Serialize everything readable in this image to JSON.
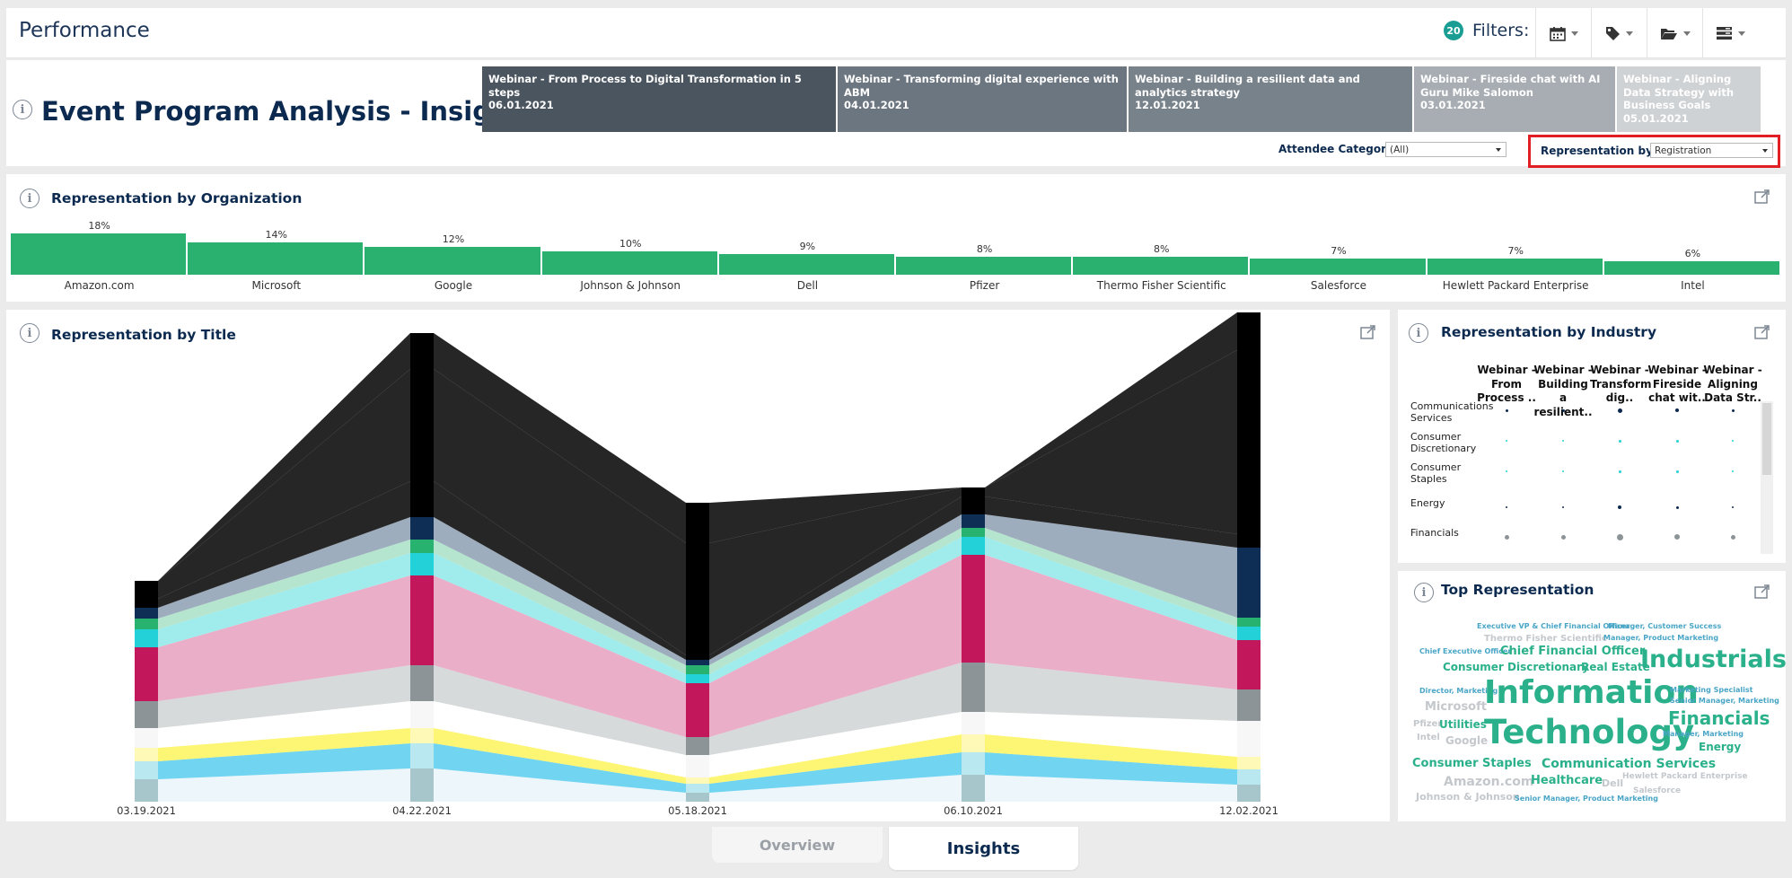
{
  "app": {
    "title": "Performance"
  },
  "filters": {
    "count": "20",
    "label": "Filters:",
    "buttons": [
      "calendar-icon",
      "tag-icon",
      "folder-icon",
      "list-icon"
    ]
  },
  "page": {
    "title": "Event Program Analysis - Insights"
  },
  "webinars": [
    {
      "title": "Webinar - From Process to Digital Transformation in 5 steps",
      "date": "06.01.2021",
      "color": "#4a5560"
    },
    {
      "title": "Webinar - Transforming digital experience with ABM",
      "date": "04.01.2021",
      "color": "#6c7680"
    },
    {
      "title": "Webinar - Building a resilient data and analytics strategy",
      "date": "12.01.2021",
      "color": "#78828b"
    },
    {
      "title": "Webinar - Fireside chat with AI Guru Mike Salomon",
      "date": "03.01.2021",
      "color": "#a7adb3"
    },
    {
      "title": "Webinar - Aligning Data Strategy with Business Goals",
      "date": "05.01.2021",
      "color": "#cfd2d5"
    }
  ],
  "controls": {
    "attendee_label": "Attendee Category:",
    "attendee_value": "(All)",
    "rep_label": "Representation by:",
    "rep_value": "Registration"
  },
  "organization": {
    "title": "Representation by Organization",
    "items": [
      {
        "name": "Amazon.com",
        "pct": "18%",
        "value": 18
      },
      {
        "name": "Microsoft",
        "pct": "14%",
        "value": 14
      },
      {
        "name": "Google",
        "pct": "12%",
        "value": 12
      },
      {
        "name": "Johnson & Johnson",
        "pct": "10%",
        "value": 10
      },
      {
        "name": "Dell",
        "pct": "9%",
        "value": 9
      },
      {
        "name": "Pfizer",
        "pct": "8%",
        "value": 8
      },
      {
        "name": "Thermo Fisher Scientific",
        "pct": "8%",
        "value": 8
      },
      {
        "name": "Salesforce",
        "pct": "7%",
        "value": 7
      },
      {
        "name": "Hewlett Packard Enterprise",
        "pct": "7%",
        "value": 7
      },
      {
        "name": "Intel",
        "pct": "6%",
        "value": 6
      }
    ]
  },
  "title_chart": {
    "title": "Representation by Title",
    "colors": [
      "#a7c6cc",
      "#eaf4f9",
      "#b9e8f0",
      "#58cdee",
      "#fff9b8",
      "#fdf35c",
      "#f7f7f7",
      "#ffffff",
      "#8c9497",
      "#cfd3d4",
      "#c2185b",
      "#e6a0bf",
      "#23d2d8",
      "#8fe9ea",
      "#27b26f",
      "#a8e0c5",
      "#0e2e55",
      "#8d9fb2"
    ]
  },
  "chart_data": {
    "type": "area",
    "x": [
      "03.19.2021",
      "04.22.2021",
      "05.18.2021",
      "06.10.2021",
      "12.02.2021"
    ],
    "series": [
      {
        "values": [
          25,
          37,
          10,
          30,
          19
        ]
      },
      {
        "values": [
          20,
          28,
          10,
          25,
          17
        ]
      },
      {
        "values": [
          15,
          17,
          7,
          20,
          14
        ]
      },
      {
        "values": [
          22,
          30,
          25,
          25,
          40
        ]
      },
      {
        "values": [
          30,
          40,
          20,
          55,
          35
        ]
      },
      {
        "values": [
          60,
          100,
          60,
          120,
          55
        ]
      },
      {
        "values": [
          20,
          25,
          10,
          20,
          15
        ]
      },
      {
        "values": [
          12,
          15,
          10,
          10,
          10
        ]
      },
      {
        "values": [
          12,
          25,
          6,
          15,
          78
        ]
      },
      {
        "values": [
          10,
          40,
          5,
          20,
          15
        ]
      },
      {
        "values": [
          20,
          125,
          125,
          10,
          205
        ]
      },
      {
        "values": [
          0,
          40,
          45,
          0,
          42
        ]
      }
    ]
  },
  "industry": {
    "title": "Representation by Industry",
    "columns": [
      "Webinar - From Process ..",
      "Webinar - Building a resilient..",
      "Webinar - Transform dig..",
      "Webinar - Fireside chat wit..",
      "Webinar - Aligning Data Str.."
    ],
    "rows": [
      {
        "name": "Communications Services",
        "color": "#0c2a4f"
      },
      {
        "name": "Consumer Discretionary",
        "color": "#23d2d8"
      },
      {
        "name": "Consumer Staples",
        "color": "#23d2d8"
      },
      {
        "name": "Energy",
        "color": "#0c2a4f"
      },
      {
        "name": "Financials",
        "color": "#8c9497"
      }
    ]
  },
  "top_representation": {
    "title": "Top Representation",
    "words": [
      "Executive VP & Chief Financial Officer",
      "Manager, Customer Success",
      "Thermo Fisher Scientific",
      "Manager, Product Marketing",
      "Chief Executive Officer",
      "Chief Financial Officer",
      "Consumer Discretionary",
      "Real Estate",
      "Industrials",
      "Director, Marketing",
      "Information",
      "Marketing Specialist",
      "Senior Manager, Marketing",
      "Microsoft",
      "Pfizer",
      "Utilities",
      "Technology",
      "Financials",
      "Intel",
      "Google",
      "Manager, Marketing",
      "Energy",
      "Consumer Staples",
      "Communication Services",
      "Amazon.com",
      "Healthcare",
      "Dell",
      "Hewlett Packard Enterprise",
      "Salesforce",
      "Johnson & Johnson",
      "Senior Manager, Product Marketing"
    ]
  },
  "tabs": {
    "overview": "Overview",
    "insights": "Insights"
  }
}
